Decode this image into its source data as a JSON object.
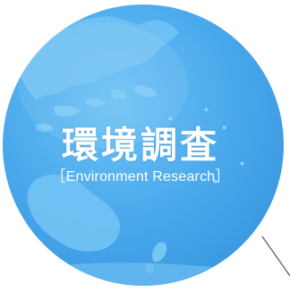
{
  "globe": {
    "title": "環境調査",
    "subtitle": "［Environment Research］",
    "ocean_color": "#4fb0ef",
    "land_color": "#6fc1f3",
    "highlight_color": "#8fd2f8"
  }
}
